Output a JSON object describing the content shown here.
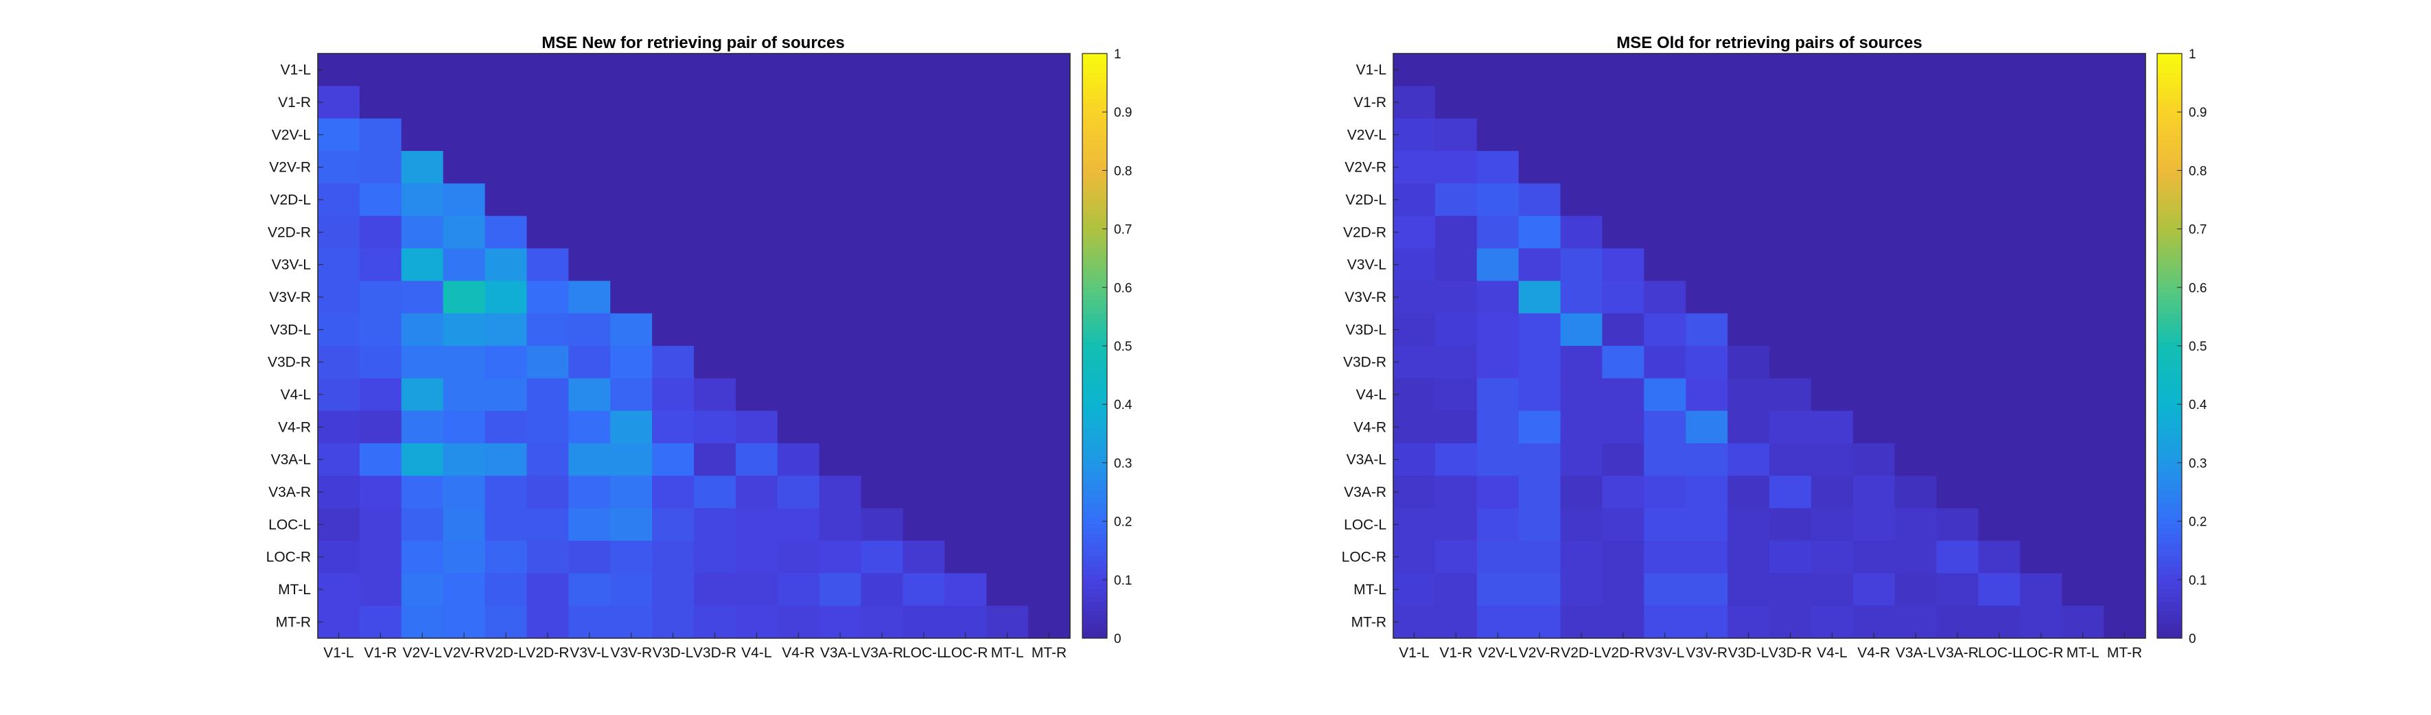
{
  "chart_data": [
    {
      "type": "heatmap",
      "title": "MSE New for retrieving pair of sources",
      "xlabel": "",
      "ylabel": "",
      "categories": [
        "V1-L",
        "V1-R",
        "V2V-L",
        "V2V-R",
        "V2D-L",
        "V2D-R",
        "V3V-L",
        "V3V-R",
        "V3D-L",
        "V3D-R",
        "V4-L",
        "V4-R",
        "V3A-L",
        "V3A-R",
        "LOC-L",
        "LOC-R",
        "MT-L",
        "MT-R"
      ],
      "x_tick_labels": [
        "V1-L",
        "V1-R",
        "V2V-L",
        "V2V-R",
        "V2D-L",
        "V2D-R",
        "V3V-L",
        "V3V-R",
        "V3D-L",
        "V3D-R",
        "V4-L",
        "V4-R",
        "V3A-L",
        "V3A-R",
        "LOC-L",
        "LOC-R",
        "MT-L",
        "MT-R"
      ],
      "y_tick_labels": [
        "V1-L",
        "V1-R",
        "V2V-L",
        "V2V-R",
        "V2D-L",
        "V2D-R",
        "V3V-L",
        "V3V-R",
        "V3D-L",
        "V3D-R",
        "V4-L",
        "V4-R",
        "V3A-L",
        "V3A-R",
        "LOC-L",
        "LOC-R",
        "MT-L",
        "MT-R"
      ],
      "colormap": "parula",
      "clim": [
        0,
        1
      ],
      "colorbar_ticks": [
        "0",
        "0.1",
        "0.2",
        "0.3",
        "0.4",
        "0.5",
        "0.6",
        "0.7",
        "0.8",
        "0.9",
        "1"
      ],
      "fill_value": 0.0,
      "lower_triangle": [
        [],
        [
          0.09
        ],
        [
          0.2,
          0.17
        ],
        [
          0.18,
          0.17,
          0.32
        ],
        [
          0.15,
          0.2,
          0.27,
          0.25
        ],
        [
          0.14,
          0.11,
          0.22,
          0.27,
          0.18
        ],
        [
          0.15,
          0.12,
          0.37,
          0.22,
          0.3,
          0.15
        ],
        [
          0.15,
          0.17,
          0.18,
          0.48,
          0.38,
          0.2,
          0.25
        ],
        [
          0.16,
          0.17,
          0.26,
          0.3,
          0.29,
          0.18,
          0.17,
          0.22
        ],
        [
          0.14,
          0.16,
          0.22,
          0.22,
          0.2,
          0.24,
          0.15,
          0.2,
          0.13
        ],
        [
          0.13,
          0.11,
          0.33,
          0.22,
          0.22,
          0.16,
          0.27,
          0.18,
          0.11,
          0.07
        ],
        [
          0.08,
          0.07,
          0.22,
          0.2,
          0.15,
          0.16,
          0.2,
          0.3,
          0.12,
          0.11,
          0.09
        ],
        [
          0.11,
          0.2,
          0.36,
          0.28,
          0.27,
          0.15,
          0.28,
          0.28,
          0.2,
          0.06,
          0.16,
          0.08
        ],
        [
          0.08,
          0.1,
          0.19,
          0.22,
          0.15,
          0.13,
          0.19,
          0.22,
          0.12,
          0.16,
          0.09,
          0.13,
          0.07
        ],
        [
          0.06,
          0.09,
          0.17,
          0.23,
          0.15,
          0.15,
          0.22,
          0.24,
          0.14,
          0.11,
          0.1,
          0.1,
          0.07,
          0.05
        ],
        [
          0.08,
          0.09,
          0.2,
          0.22,
          0.18,
          0.14,
          0.13,
          0.15,
          0.13,
          0.11,
          0.1,
          0.09,
          0.1,
          0.12,
          0.07
        ],
        [
          0.1,
          0.09,
          0.22,
          0.2,
          0.16,
          0.11,
          0.17,
          0.16,
          0.13,
          0.09,
          0.09,
          0.11,
          0.14,
          0.08,
          0.12,
          0.1
        ],
        [
          0.1,
          0.12,
          0.21,
          0.2,
          0.17,
          0.11,
          0.15,
          0.15,
          0.13,
          0.11,
          0.1,
          0.09,
          0.1,
          0.09,
          0.08,
          0.08,
          0.06
        ]
      ]
    },
    {
      "type": "heatmap",
      "title": "MSE Old for retrieving pairs of sources",
      "xlabel": "",
      "ylabel": "",
      "categories": [
        "V1-L",
        "V1-R",
        "V2V-L",
        "V2V-R",
        "V2D-L",
        "V2D-R",
        "V3V-L",
        "V3V-R",
        "V3D-L",
        "V3D-R",
        "V4-L",
        "V4-R",
        "V3A-L",
        "V3A-R",
        "LOC-L",
        "LOC-R",
        "MT-L",
        "MT-R"
      ],
      "x_tick_labels": [
        "V1-L",
        "V1-R",
        "V2V-L",
        "V2V-R",
        "V2D-L",
        "V2D-R",
        "V3V-L",
        "V3V-R",
        "V3D-L",
        "V3D-R",
        "V4-L",
        "V4-R",
        "V3A-L",
        "V3A-R",
        "LOC-L",
        "LOC-R",
        "MT-L",
        "MT-R"
      ],
      "y_tick_labels": [
        "V1-L",
        "V1-R",
        "V2V-L",
        "V2V-R",
        "V2D-L",
        "V2D-R",
        "V3V-L",
        "V3V-R",
        "V3D-L",
        "V3D-R",
        "V4-L",
        "V4-R",
        "V3A-L",
        "V3A-R",
        "LOC-L",
        "LOC-R",
        "MT-L",
        "MT-R"
      ],
      "colormap": "parula",
      "clim": [
        0,
        1
      ],
      "colorbar_ticks": [
        "0",
        "0.1",
        "0.2",
        "0.3",
        "0.4",
        "0.5",
        "0.6",
        "0.7",
        "0.8",
        "0.9",
        "1"
      ],
      "fill_value": 0.0,
      "lower_triangle": [
        [],
        [
          0.05
        ],
        [
          0.08,
          0.07
        ],
        [
          0.1,
          0.1,
          0.12
        ],
        [
          0.08,
          0.14,
          0.16,
          0.13
        ],
        [
          0.1,
          0.06,
          0.14,
          0.2,
          0.08
        ],
        [
          0.08,
          0.06,
          0.24,
          0.09,
          0.13,
          0.1
        ],
        [
          0.07,
          0.07,
          0.09,
          0.33,
          0.13,
          0.11,
          0.07
        ],
        [
          0.06,
          0.08,
          0.1,
          0.12,
          0.26,
          0.05,
          0.11,
          0.14
        ],
        [
          0.07,
          0.07,
          0.1,
          0.12,
          0.07,
          0.18,
          0.08,
          0.11,
          0.04
        ],
        [
          0.05,
          0.06,
          0.14,
          0.12,
          0.07,
          0.07,
          0.21,
          0.1,
          0.05,
          0.05
        ],
        [
          0.05,
          0.05,
          0.14,
          0.19,
          0.07,
          0.07,
          0.14,
          0.24,
          0.05,
          0.07,
          0.07
        ],
        [
          0.08,
          0.12,
          0.14,
          0.14,
          0.07,
          0.05,
          0.14,
          0.14,
          0.11,
          0.06,
          0.06,
          0.05
        ],
        [
          0.06,
          0.07,
          0.1,
          0.14,
          0.05,
          0.09,
          0.11,
          0.12,
          0.05,
          0.12,
          0.05,
          0.07,
          0.04
        ],
        [
          0.07,
          0.07,
          0.12,
          0.14,
          0.06,
          0.07,
          0.12,
          0.12,
          0.06,
          0.05,
          0.06,
          0.07,
          0.06,
          0.05
        ],
        [
          0.07,
          0.09,
          0.13,
          0.13,
          0.07,
          0.06,
          0.11,
          0.11,
          0.06,
          0.08,
          0.07,
          0.06,
          0.06,
          0.11,
          0.06
        ],
        [
          0.08,
          0.07,
          0.14,
          0.14,
          0.07,
          0.06,
          0.14,
          0.14,
          0.06,
          0.06,
          0.06,
          0.09,
          0.05,
          0.06,
          0.11,
          0.06
        ],
        [
          0.07,
          0.07,
          0.12,
          0.12,
          0.06,
          0.06,
          0.12,
          0.12,
          0.07,
          0.06,
          0.07,
          0.06,
          0.06,
          0.05,
          0.05,
          0.06,
          0.05
        ]
      ]
    }
  ]
}
